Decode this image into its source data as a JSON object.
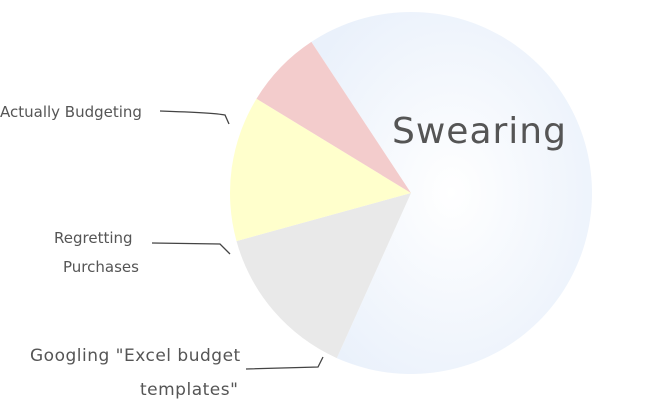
{
  "chart_data": {
    "type": "pie",
    "title": "",
    "slices": [
      {
        "label": "Swearing",
        "value": 66,
        "color": "#eef3fb"
      },
      {
        "label": "Googling \"Excel budget templates\"",
        "value": 14,
        "color": "#e9e9e9"
      },
      {
        "label": "Regretting Purchases",
        "value": 13,
        "color": "#ffffcc"
      },
      {
        "label": "Actually Budgeting",
        "value": 7,
        "color": "#f3cccc"
      }
    ],
    "labels": {
      "actually_budgeting": "Actually Budgeting",
      "regretting_line1": "Regretting",
      "regretting_line2": "Purchases",
      "googling_line1": "Googling \"Excel budget",
      "googling_line2": "templates\"",
      "swearing": "Swearing"
    }
  }
}
